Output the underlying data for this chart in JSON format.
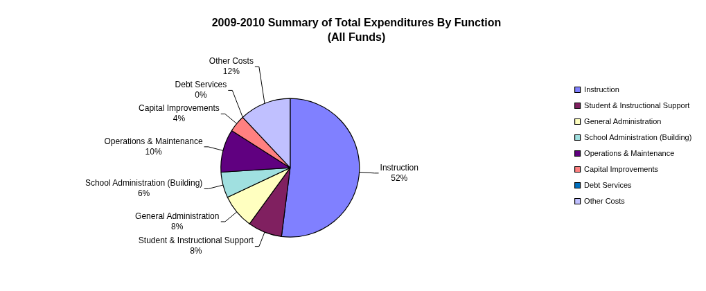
{
  "chart_data": {
    "type": "pie",
    "title": "2009-2010 Summary of Total Expenditures By Function",
    "subtitle": "(All Funds)",
    "categories": [
      "Instruction",
      "Student & Instructional Support",
      "General Administration",
      "School Administration (Building)",
      "Operations & Maintenance",
      "Capital Improvements",
      "Debt Services",
      "Other Costs"
    ],
    "values": [
      52,
      8,
      8,
      6,
      10,
      4,
      0,
      12
    ],
    "colors": [
      "#8080ff",
      "#802060",
      "#ffffc0",
      "#a0e0e0",
      "#600080",
      "#ff8080",
      "#0070c0",
      "#c0c0ff"
    ],
    "value_labels": [
      "52%",
      "8%",
      "8%",
      "6%",
      "10%",
      "4%",
      "0%",
      "12%"
    ],
    "legend": "right"
  }
}
